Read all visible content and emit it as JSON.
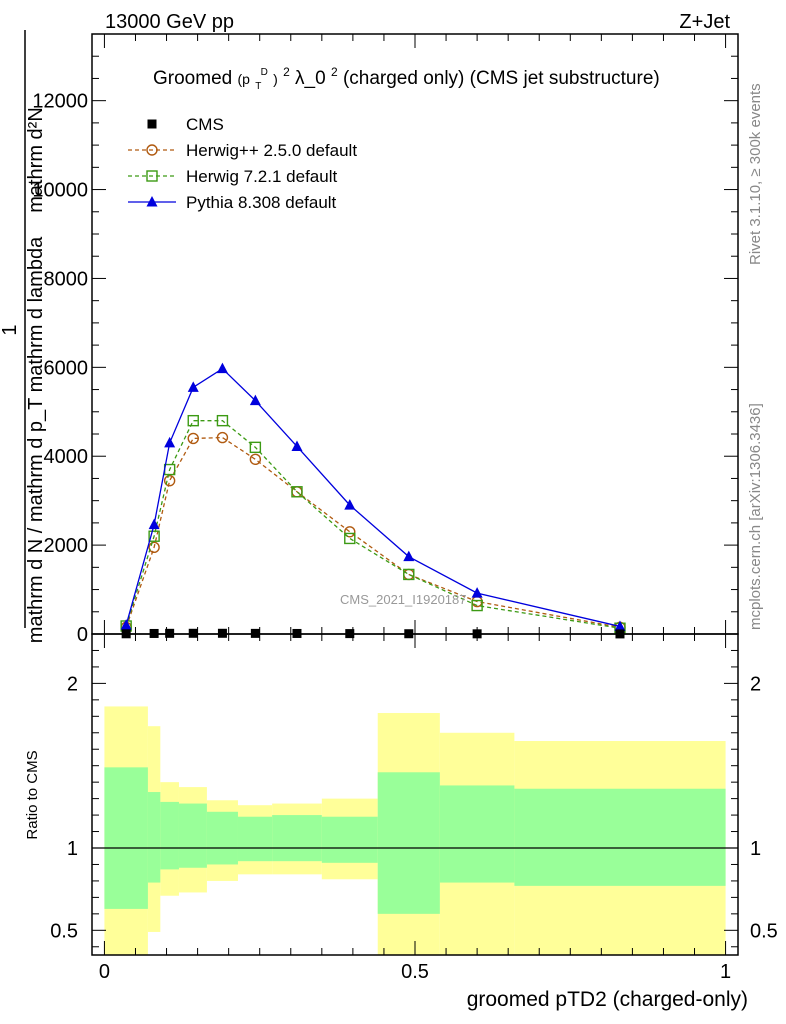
{
  "header": {
    "left": "13000 GeV pp",
    "right": "Z+Jet"
  },
  "side": {
    "rivet": "Rivet 3.1.10, ≥ 300k events",
    "mcplots": "mcplots.cern.ch [arXiv:1306.3436]"
  },
  "watermark": "CMS_2021_I1920187",
  "chart_data": {
    "type": "line",
    "title": "Groomed (p_T^D)^2 λ_0^2  (charged only) (CMS jet substructure)",
    "title_parts": {
      "pre": "Groomed",
      "open": "(p",
      "sub": "T",
      "sup": "D",
      "close": ")",
      "sq": "2",
      "lam": " λ_0",
      "sq2": "2",
      "post": "  (charged only) (CMS jet substructure)"
    },
    "xlabel": "groomed pTD2 (charged-only)",
    "ylabel_top": "1",
    "ylabel_num": "mathrm d²N",
    "ylabel_den": "mathrm d N / mathrm d p_T mathrm d lambda",
    "ylabel_ratio": "Ratio to CMS",
    "xlim": [
      -0.02,
      1.02
    ],
    "ylim": [
      0,
      13500
    ],
    "ratio_ylim": [
      0.35,
      2.3
    ],
    "xticks": [
      {
        "v": 0,
        "label": "0"
      },
      {
        "v": 0.5,
        "label": "0.5"
      },
      {
        "v": 1,
        "label": "1"
      }
    ],
    "yticks": [
      {
        "v": 0,
        "label": "0"
      },
      {
        "v": 2000,
        "label": "2000"
      },
      {
        "v": 4000,
        "label": "4000"
      },
      {
        "v": 6000,
        "label": "6000"
      },
      {
        "v": 8000,
        "label": "8000"
      },
      {
        "v": 10000,
        "label": "10000"
      },
      {
        "v": 12000,
        "label": "12000"
      }
    ],
    "ratio_yticks": [
      {
        "v": 0.5,
        "label": "0.5"
      },
      {
        "v": 1,
        "label": "1"
      },
      {
        "v": 2,
        "label": "2"
      }
    ],
    "legend": [
      {
        "name": "CMS",
        "color": "#000000",
        "marker": "square-filled",
        "dash": false
      },
      {
        "name": "Herwig++ 2.5.0 default",
        "color": "#b05a10",
        "marker": "circle-open",
        "dash": true
      },
      {
        "name": "Herwig 7.2.1 default",
        "color": "#3c9a14",
        "marker": "square-open",
        "dash": true
      },
      {
        "name": "Pythia 8.308 default",
        "color": "#0000dd",
        "marker": "triangle-filled",
        "dash": false
      }
    ],
    "bins": [
      0,
      0.07,
      0.09,
      0.12,
      0.165,
      0.215,
      0.27,
      0.35,
      0.44,
      0.54,
      0.66,
      1.0
    ],
    "x": [
      0.035,
      0.08,
      0.105,
      0.143,
      0.19,
      0.243,
      0.31,
      0.395,
      0.49,
      0.6,
      0.83
    ],
    "series": [
      {
        "name": "CMS",
        "values": [
          5,
          12,
          15,
          16,
          16,
          14,
          12,
          9,
          6,
          4,
          2
        ]
      },
      {
        "name": "Herwig++ 2.5.0 default",
        "values": [
          150,
          1950,
          3450,
          4400,
          4420,
          3930,
          3200,
          2300,
          1340,
          730,
          150
        ]
      },
      {
        "name": "Herwig 7.2.1 default",
        "values": [
          180,
          2200,
          3700,
          4800,
          4800,
          4200,
          3200,
          2150,
          1340,
          640,
          130
        ]
      },
      {
        "name": "Pythia 8.308 default",
        "values": [
          200,
          2460,
          4300,
          5550,
          5970,
          5250,
          4220,
          2900,
          1740,
          920,
          170
        ]
      }
    ],
    "ratio_band_inner": [
      {
        "x0": 0.0,
        "x1": 0.07,
        "lo": 0.63,
        "hi": 1.49
      },
      {
        "x0": 0.07,
        "x1": 0.09,
        "lo": 0.79,
        "hi": 1.34
      },
      {
        "x0": 0.09,
        "x1": 0.12,
        "lo": 0.87,
        "hi": 1.28
      },
      {
        "x0": 0.12,
        "x1": 0.165,
        "lo": 0.88,
        "hi": 1.27
      },
      {
        "x0": 0.165,
        "x1": 0.215,
        "lo": 0.9,
        "hi": 1.22
      },
      {
        "x0": 0.215,
        "x1": 0.27,
        "lo": 0.92,
        "hi": 1.19
      },
      {
        "x0": 0.27,
        "x1": 0.35,
        "lo": 0.92,
        "hi": 1.2
      },
      {
        "x0": 0.35,
        "x1": 0.44,
        "lo": 0.91,
        "hi": 1.19
      },
      {
        "x0": 0.44,
        "x1": 0.54,
        "lo": 0.6,
        "hi": 1.46
      },
      {
        "x0": 0.54,
        "x1": 0.66,
        "lo": 0.79,
        "hi": 1.38
      },
      {
        "x0": 0.66,
        "x1": 1.0,
        "lo": 0.77,
        "hi": 1.36
      }
    ],
    "ratio_band_outer": [
      {
        "x0": 0.0,
        "x1": 0.07,
        "lo": 0.3,
        "hi": 1.86
      },
      {
        "x0": 0.07,
        "x1": 0.09,
        "lo": 0.49,
        "hi": 1.74
      },
      {
        "x0": 0.09,
        "x1": 0.12,
        "lo": 0.71,
        "hi": 1.4
      },
      {
        "x0": 0.12,
        "x1": 0.165,
        "lo": 0.73,
        "hi": 1.37
      },
      {
        "x0": 0.165,
        "x1": 0.215,
        "lo": 0.8,
        "hi": 1.29
      },
      {
        "x0": 0.215,
        "x1": 0.27,
        "lo": 0.84,
        "hi": 1.26
      },
      {
        "x0": 0.27,
        "x1": 0.35,
        "lo": 0.84,
        "hi": 1.27
      },
      {
        "x0": 0.35,
        "x1": 0.44,
        "lo": 0.81,
        "hi": 1.3
      },
      {
        "x0": 0.44,
        "x1": 0.54,
        "lo": 0.3,
        "hi": 1.82
      },
      {
        "x0": 0.54,
        "x1": 0.66,
        "lo": 0.3,
        "hi": 1.7
      },
      {
        "x0": 0.66,
        "x1": 1.0,
        "lo": 0.3,
        "hi": 1.65
      }
    ],
    "colors": {
      "band_inner": "#99ff99",
      "band_outer": "#ffff99",
      "axis": "#000000"
    }
  }
}
